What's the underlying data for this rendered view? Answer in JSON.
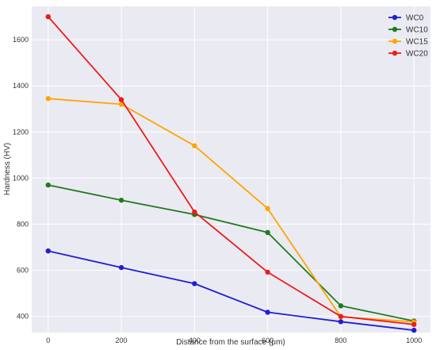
{
  "chart_data": {
    "type": "line",
    "xlabel": "Distance from the surface (μm)",
    "ylabel": "Hardness (HV)",
    "xlim": [
      -45,
      1045
    ],
    "ylim": [
      330,
      1745
    ],
    "xticks": [
      0,
      200,
      400,
      600,
      800,
      1000
    ],
    "yticks": [
      400,
      600,
      800,
      1000,
      1200,
      1400,
      1600
    ],
    "grid": true,
    "legend_position": "top-right",
    "x": [
      0,
      200,
      400,
      600,
      800,
      1000
    ],
    "series": [
      {
        "name": "WC0",
        "color": "#1f1fd6",
        "values": [
          684,
          612,
          542,
          418,
          377,
          340
        ]
      },
      {
        "name": "WC10",
        "color": "#1e7b1e",
        "values": [
          970,
          904,
          842,
          764,
          446,
          380
        ]
      },
      {
        "name": "WC15",
        "color": "#ffa500",
        "values": [
          1345,
          1320,
          1140,
          868,
          398,
          376
        ]
      },
      {
        "name": "WC20",
        "color": "#ee1b1b",
        "values": [
          1700,
          1340,
          853,
          592,
          400,
          365
        ]
      }
    ]
  }
}
